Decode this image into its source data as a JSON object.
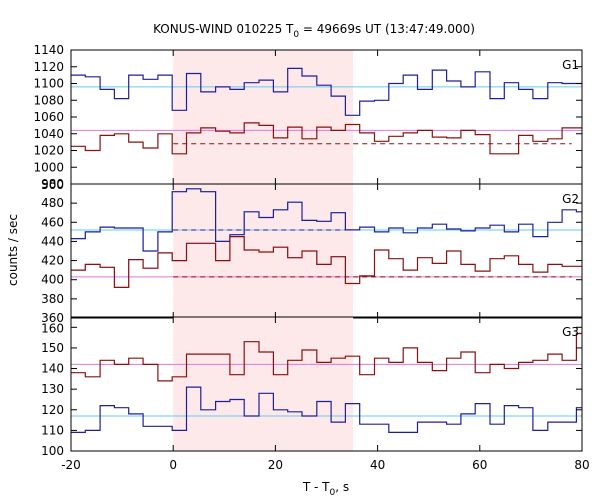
{
  "chart_data": {
    "type": "line",
    "title_main": "KONUS-WIND 010225 T",
    "title_sub": "0",
    "title_rest": " = 49669s UT (13:47:49.000)",
    "xlabel_main": "T - T",
    "xlabel_sub": "0",
    "xlabel_rest": ", s",
    "ylabel": "counts / sec",
    "xlim": [
      -20,
      80
    ],
    "x_ticks": [
      "-20",
      "0",
      "20",
      "40",
      "60",
      "80"
    ],
    "highlight_interval": [
      0,
      35.2
    ],
    "colors": {
      "high_band": "#1f1f9e",
      "low_band": "#8b1010",
      "high_bg": "#66ccee",
      "low_bg": "#dd77dd",
      "highlight": "#fde8ea"
    },
    "panels": [
      {
        "name": "G1",
        "ylim": [
          980,
          1140
        ],
        "y_ticks": [
          "980",
          "1000",
          "1020",
          "1040",
          "1060",
          "1080",
          "1100",
          "1120",
          "1140"
        ],
        "bin_edges": [
          -20.0,
          -17.2,
          -14.3,
          -11.5,
          -8.7,
          -5.9,
          -3.0,
          -0.2,
          2.6,
          5.4,
          8.3,
          11.1,
          13.9,
          16.8,
          19.6,
          22.4,
          25.2,
          28.1,
          30.9,
          33.7,
          36.5,
          39.4,
          42.2,
          45.0,
          47.8,
          50.7,
          53.5,
          56.3,
          59.1,
          62.0,
          64.8,
          67.6,
          70.4,
          73.3,
          76.1,
          78.9,
          80.0
        ],
        "high_counts": [
          1110,
          1108,
          1093,
          1082,
          1110,
          1105,
          1110,
          1068,
          1112,
          1090,
          1096,
          1093,
          1101,
          1104,
          1090,
          1118,
          1109,
          1098,
          1085,
          1062,
          1079,
          1080,
          1100,
          1110,
          1093,
          1116,
          1103,
          1096,
          1114,
          1082,
          1101,
          1093,
          1082,
          1101,
          1100,
          1100
        ],
        "low_counts": [
          1025,
          1020,
          1038,
          1040,
          1030,
          1023,
          1040,
          1016,
          1041,
          1047,
          1043,
          1041,
          1053,
          1050,
          1035,
          1048,
          1034,
          1048,
          1044,
          1051,
          1041,
          1031,
          1037,
          1041,
          1044,
          1036,
          1035,
          1044,
          1039,
          1016,
          1016,
          1038,
          1031,
          1034,
          1047,
          1047
        ],
        "high_background": 1096,
        "low_background": 1044,
        "low_dashed": 1028
      },
      {
        "name": "G2",
        "ylim": [
          360,
          500
        ],
        "y_ticks": [
          "360",
          "380",
          "400",
          "420",
          "440",
          "460",
          "480",
          "500"
        ],
        "bin_edges": [
          -20.0,
          -17.2,
          -14.3,
          -11.5,
          -8.7,
          -5.9,
          -3.0,
          -0.2,
          2.6,
          5.4,
          8.3,
          11.1,
          13.9,
          16.8,
          19.6,
          22.4,
          25.2,
          28.1,
          30.9,
          33.7,
          36.5,
          39.4,
          42.2,
          45.0,
          47.8,
          50.7,
          53.5,
          56.3,
          59.1,
          62.0,
          64.8,
          67.6,
          70.4,
          73.3,
          76.1,
          78.9,
          80.0
        ],
        "high_counts": [
          443,
          450,
          455,
          454,
          454,
          430,
          450,
          492,
          495,
          492,
          440,
          447,
          471,
          465,
          473,
          481,
          462,
          461,
          470,
          452,
          455,
          450,
          454,
          449,
          454,
          458,
          453,
          451,
          454,
          457,
          450,
          458,
          445,
          460,
          473,
          471
        ],
        "low_counts": [
          410,
          416,
          413,
          392,
          421,
          412,
          428,
          420,
          438,
          438,
          420,
          445,
          431,
          429,
          434,
          423,
          430,
          416,
          424,
          396,
          404,
          431,
          422,
          410,
          423,
          417,
          430,
          416,
          409,
          422,
          425,
          416,
          408,
          416,
          414,
          414
        ],
        "high_background": 452,
        "low_background": 403,
        "high_dashed": 452,
        "low_dashed": 403
      },
      {
        "name": "G3",
        "ylim": [
          100,
          165
        ],
        "y_ticks": [
          "100",
          "110",
          "120",
          "130",
          "140",
          "150",
          "160"
        ],
        "bin_edges": [
          -20.0,
          -17.2,
          -14.3,
          -11.5,
          -8.7,
          -5.9,
          -3.0,
          -0.2,
          2.6,
          5.4,
          8.3,
          11.1,
          13.9,
          16.8,
          19.6,
          22.4,
          25.2,
          28.1,
          30.9,
          33.7,
          36.5,
          39.4,
          42.2,
          45.0,
          47.8,
          50.7,
          53.5,
          56.3,
          59.1,
          62.0,
          64.8,
          67.6,
          70.4,
          73.3,
          76.1,
          78.9,
          80.0
        ],
        "high_counts": [
          109,
          110,
          122,
          121,
          118,
          112,
          112,
          110,
          131,
          120,
          124,
          125,
          117,
          128,
          120,
          119,
          117,
          124,
          114,
          123,
          113,
          113,
          109,
          109,
          114,
          114,
          113,
          118,
          123,
          113,
          122,
          121,
          110,
          114,
          114,
          121
        ],
        "low_counts": [
          138,
          136,
          144,
          142,
          145,
          142,
          134,
          136,
          147,
          147,
          147,
          137,
          153,
          148,
          137,
          144,
          149,
          143,
          145,
          146,
          137,
          145,
          143,
          150,
          143,
          139,
          145,
          148,
          138,
          142,
          140,
          143,
          144,
          147,
          144,
          157
        ],
        "high_background": 117,
        "low_background": 142
      }
    ]
  }
}
